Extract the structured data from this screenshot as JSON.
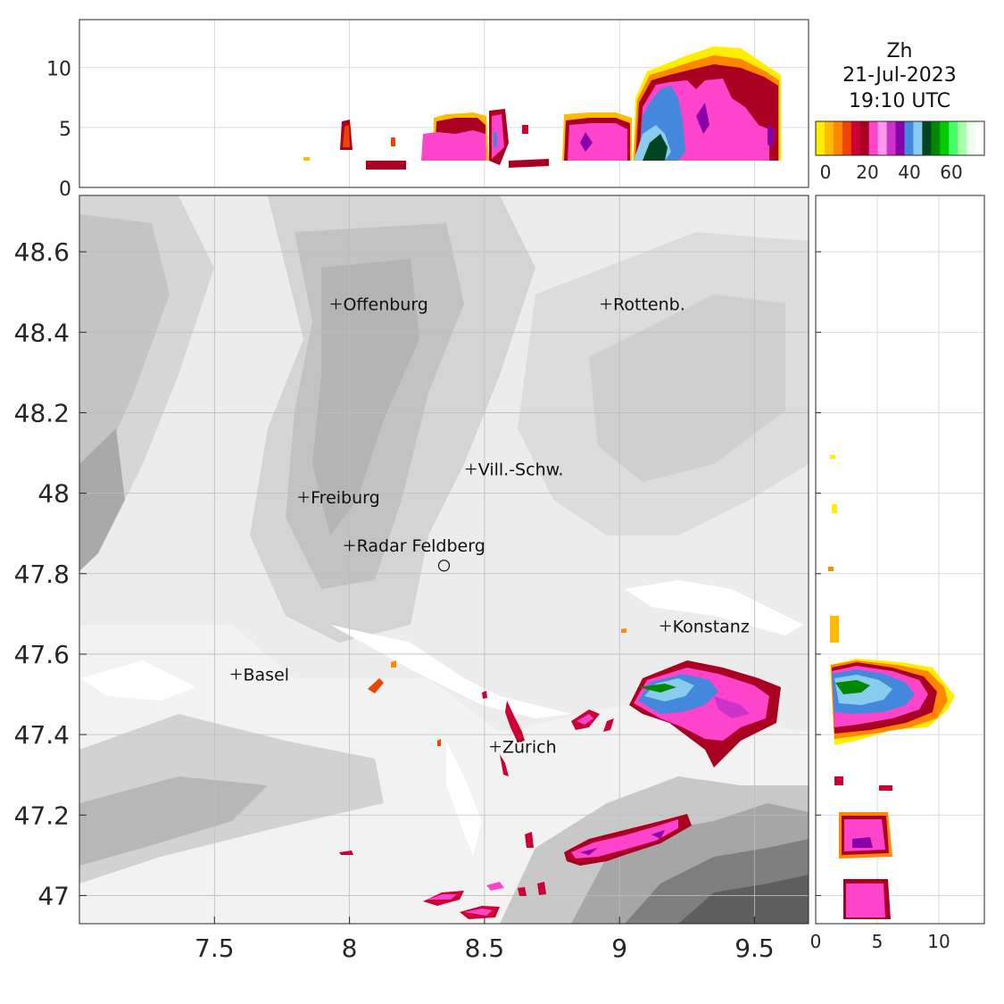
{
  "product": "Zh",
  "date": "21-Jul-2023",
  "time": "19:10 UTC",
  "colorbar": {
    "colors": [
      "#ffee00",
      "#ffbb00",
      "#ff8800",
      "#ee4400",
      "#cc0033",
      "#aa0022",
      "#ff44cc",
      "#ff99ee",
      "#cc33cc",
      "#8800aa",
      "#4488dd",
      "#88ccee",
      "#004422",
      "#008800",
      "#00cc00",
      "#44ff66",
      "#aaffaa",
      "#eeffee",
      "#ffffff"
    ],
    "tick_labels": [
      "0",
      "20",
      "40",
      "60"
    ]
  },
  "map": {
    "x_ticks": [
      "7.5",
      "8",
      "8.5",
      "9",
      "9.5"
    ],
    "y_ticks": [
      "48.6",
      "48.4",
      "48.2",
      "48",
      "47.8",
      "47.6",
      "47.4",
      "47.2",
      "47"
    ],
    "lon_range": [
      7.0,
      9.7
    ],
    "lat_range": [
      46.93,
      48.74
    ]
  },
  "top_panel": {
    "y_ticks": [
      "10",
      "5",
      "0"
    ]
  },
  "side_panel": {
    "x_ticks": [
      "0",
      "5",
      "10"
    ]
  },
  "cities": [
    {
      "name": "Offenburg",
      "lon": 7.95,
      "lat": 48.47
    },
    {
      "name": "Rottenb.",
      "lon": 8.95,
      "lat": 48.47
    },
    {
      "name": "Vill.-Schw.",
      "lon": 8.45,
      "lat": 48.06
    },
    {
      "name": "Freiburg",
      "lon": 7.83,
      "lat": 47.99
    },
    {
      "name": "Radar Feldberg",
      "lon": 8.0,
      "lat": 47.87
    },
    {
      "name": "Konstanz",
      "lon": 9.17,
      "lat": 47.67
    },
    {
      "name": "Basel",
      "lon": 7.58,
      "lat": 47.55
    },
    {
      "name": "Zürich",
      "lon": 8.54,
      "lat": 47.37
    }
  ],
  "radar_site": {
    "lon": 8.35,
    "lat": 47.82
  }
}
